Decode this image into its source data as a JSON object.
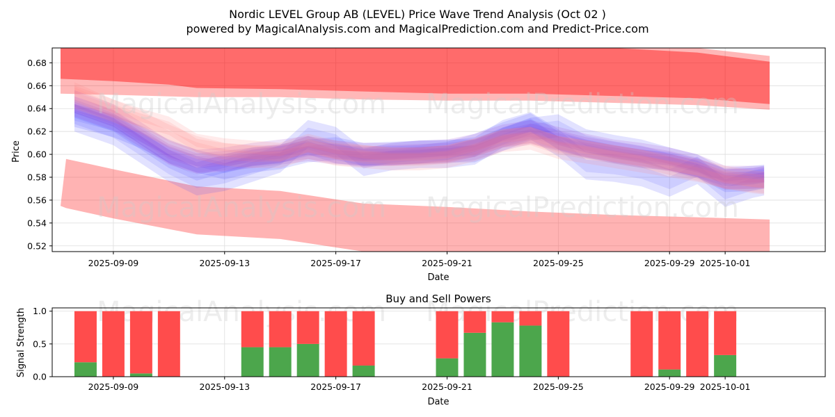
{
  "chart_data": [
    {
      "type": "area",
      "title": "Nordic LEVEL Group AB (LEVEL) Price Wave Trend Analysis (Oct 02 )",
      "subtitle": "powered by MagicalAnalysis.com and MagicalPrediction.com and Predict-Price.com",
      "xlabel": "Date",
      "ylabel": "Price",
      "ylim": [
        0.515,
        0.693
      ],
      "yticks": [
        "0.52",
        "0.54",
        "0.56",
        "0.58",
        "0.60",
        "0.62",
        "0.64",
        "0.66",
        "0.68"
      ],
      "ytick_values": [
        0.52,
        0.54,
        0.56,
        0.58,
        0.6,
        0.62,
        0.64,
        0.66,
        0.68
      ],
      "x_day_range": [
        -2.2,
        25.6
      ],
      "xticks": [
        "2025-09-09",
        "2025-09-13",
        "2025-09-17",
        "2025-09-21",
        "2025-09-25",
        "2025-09-29",
        "2025-10-01"
      ],
      "xtick_days": [
        0,
        4,
        8,
        12,
        16,
        20,
        22
      ],
      "watermarks": [
        "MagicalAnalysis.com",
        "MagicalPrediction.com",
        "MagicalAnalysis.com",
        "MagicalPrediction.com"
      ],
      "colors": {
        "upper": "#ff0000",
        "lower": "#ff4040",
        "blue": "#4d4dff",
        "purple": "#9a3fd0",
        "pink": "#ff8080"
      },
      "upper_band": {
        "days": [
          -1.9,
          0,
          2,
          3,
          6,
          9,
          12,
          15,
          18,
          21,
          23.6
        ],
        "top": [
          0.693,
          0.693,
          0.693,
          0.693,
          0.693,
          0.693,
          0.693,
          0.693,
          0.693,
          0.689,
          0.681
        ],
        "bottom": [
          0.666,
          0.664,
          0.661,
          0.658,
          0.657,
          0.655,
          0.653,
          0.653,
          0.651,
          0.649,
          0.644
        ]
      },
      "upper_band_outer": {
        "days": [
          -1.9,
          0,
          3,
          6,
          9,
          12,
          15,
          18,
          21,
          23.6
        ],
        "top": [
          0.693,
          0.693,
          0.693,
          0.693,
          0.693,
          0.693,
          0.693,
          0.693,
          0.693,
          0.686
        ],
        "bottom": [
          0.653,
          0.652,
          0.65,
          0.65,
          0.648,
          0.647,
          0.647,
          0.645,
          0.643,
          0.639
        ]
      },
      "lower_band": {
        "days": [
          -1.9,
          -1.7,
          0,
          3,
          6,
          9,
          12,
          15,
          18,
          21,
          23.6
        ],
        "top": [
          0.555,
          0.596,
          0.587,
          0.572,
          0.568,
          0.557,
          0.554,
          0.55,
          0.547,
          0.545,
          0.543
        ],
        "bottom": [
          0.555,
          0.553,
          0.544,
          0.53,
          0.526,
          0.515,
          0.515,
          0.515,
          0.515,
          0.515,
          0.515
        ]
      },
      "wave_series": [
        {
          "name": "blue-1",
          "color": "blue",
          "days": [
            -1.4,
            0,
            1,
            2,
            3,
            4,
            5,
            6,
            7,
            8,
            9,
            10,
            11,
            12,
            13,
            14,
            15,
            16,
            17,
            18,
            19,
            20,
            21,
            22,
            23,
            23.4
          ],
          "mid": [
            0.634,
            0.625,
            0.615,
            0.603,
            0.594,
            0.588,
            0.594,
            0.597,
            0.603,
            0.605,
            0.6,
            0.601,
            0.602,
            0.603,
            0.603,
            0.613,
            0.622,
            0.625,
            0.612,
            0.607,
            0.603,
            0.596,
            0.59,
            0.577,
            0.578,
            0.58
          ],
          "width": 0.01
        },
        {
          "name": "blue-2",
          "color": "blue",
          "days": [
            -1.4,
            0,
            1,
            2,
            3,
            4,
            5,
            6,
            7,
            8,
            9,
            10,
            11,
            12,
            13,
            14,
            15,
            16,
            17,
            18,
            19,
            20,
            21,
            22,
            23,
            23.4
          ],
          "mid": [
            0.632,
            0.62,
            0.604,
            0.588,
            0.576,
            0.58,
            0.588,
            0.596,
            0.618,
            0.612,
            0.593,
            0.598,
            0.6,
            0.6,
            0.603,
            0.618,
            0.625,
            0.61,
            0.59,
            0.588,
            0.584,
            0.575,
            0.586,
            0.566,
            0.574,
            0.576
          ],
          "width": 0.012
        },
        {
          "name": "blue-3",
          "color": "blue",
          "days": [
            -1.4,
            0,
            1,
            2,
            3,
            4,
            5,
            6,
            7,
            8,
            9,
            10,
            11,
            12,
            13,
            14,
            15,
            16,
            17,
            18,
            19,
            20,
            21,
            22,
            23,
            23.4
          ],
          "mid": [
            0.64,
            0.628,
            0.612,
            0.596,
            0.585,
            0.592,
            0.598,
            0.6,
            0.608,
            0.6,
            0.598,
            0.599,
            0.6,
            0.603,
            0.61,
            0.62,
            0.628,
            0.612,
            0.605,
            0.6,
            0.596,
            0.594,
            0.588,
            0.58,
            0.582,
            0.583
          ],
          "width": 0.008
        },
        {
          "name": "purple-1",
          "color": "purple",
          "days": [
            -1.4,
            0,
            1,
            2,
            3,
            4,
            5,
            6,
            7,
            8,
            9,
            10,
            11,
            12,
            13,
            14,
            15,
            16,
            17,
            18,
            19,
            20,
            21,
            22,
            23,
            23.4
          ],
          "mid": [
            0.642,
            0.63,
            0.615,
            0.6,
            0.592,
            0.594,
            0.597,
            0.6,
            0.603,
            0.6,
            0.598,
            0.599,
            0.6,
            0.601,
            0.604,
            0.612,
            0.618,
            0.612,
            0.606,
            0.602,
            0.598,
            0.594,
            0.588,
            0.578,
            0.579,
            0.58
          ],
          "width": 0.009
        },
        {
          "name": "purple-2",
          "color": "purple",
          "days": [
            -1.4,
            0,
            1,
            2,
            3,
            4,
            5,
            6,
            7,
            8,
            9,
            10,
            11,
            12,
            13,
            14,
            15,
            16,
            17,
            18,
            19,
            20,
            21,
            22,
            23,
            23.4
          ],
          "mid": [
            0.646,
            0.634,
            0.618,
            0.602,
            0.594,
            0.596,
            0.6,
            0.603,
            0.606,
            0.602,
            0.6,
            0.6,
            0.602,
            0.603,
            0.608,
            0.616,
            0.62,
            0.614,
            0.608,
            0.603,
            0.6,
            0.596,
            0.59,
            0.58,
            0.58,
            0.58
          ],
          "width": 0.01
        },
        {
          "name": "pink-1",
          "color": "pink",
          "days": [
            -1.4,
            0,
            1,
            2,
            3,
            4,
            5,
            6,
            7,
            8,
            9,
            10,
            11,
            12,
            13,
            14,
            15,
            16,
            17,
            18,
            19,
            20,
            21,
            22,
            23,
            23.4
          ],
          "mid": [
            0.655,
            0.64,
            0.632,
            0.625,
            0.61,
            0.606,
            0.604,
            0.602,
            0.61,
            0.604,
            0.6,
            0.598,
            0.598,
            0.6,
            0.606,
            0.614,
            0.616,
            0.608,
            0.604,
            0.6,
            0.596,
            0.59,
            0.585,
            0.578,
            0.575,
            0.574
          ],
          "width": 0.008
        },
        {
          "name": "pink-2",
          "color": "pink",
          "days": [
            -1.4,
            0,
            1,
            2,
            3,
            4,
            5,
            6,
            7,
            8,
            9,
            10,
            11,
            12,
            13,
            14,
            15,
            16,
            17,
            18,
            19,
            20,
            21,
            22,
            23,
            23.4
          ],
          "mid": [
            0.65,
            0.638,
            0.628,
            0.616,
            0.606,
            0.6,
            0.598,
            0.598,
            0.606,
            0.6,
            0.598,
            0.596,
            0.596,
            0.598,
            0.604,
            0.612,
            0.614,
            0.606,
            0.602,
            0.598,
            0.594,
            0.59,
            0.586,
            0.58,
            0.576,
            0.575
          ],
          "width": 0.01
        }
      ]
    },
    {
      "type": "bar",
      "title": "Buy and Sell Powers",
      "xlabel": "Date",
      "ylabel": "Signal Strength",
      "ylim": [
        0,
        1.05
      ],
      "yticks": [
        "0.0",
        "0.5",
        "1.0"
      ],
      "ytick_values": [
        0,
        0.5,
        1.0
      ],
      "x_day_range": [
        -2.2,
        25.6
      ],
      "xticks": [
        "2025-09-09",
        "2025-09-13",
        "2025-09-17",
        "2025-09-21",
        "2025-09-25",
        "2025-09-29",
        "2025-10-01"
      ],
      "xtick_days": [
        0,
        4,
        8,
        12,
        16,
        20,
        22
      ],
      "bar_days": [
        -1,
        0,
        1,
        2,
        5,
        6,
        7,
        8,
        9,
        12,
        13,
        14,
        15,
        16,
        19,
        20,
        21,
        22
      ],
      "series": [
        {
          "name": "Buy",
          "color": "#4ca64c",
          "values": [
            0.22,
            0.0,
            0.05,
            0.0,
            0.45,
            0.45,
            0.5,
            0.0,
            0.17,
            0.28,
            0.67,
            0.83,
            0.78,
            0.0,
            0.0,
            0.11,
            0.0,
            0.33
          ]
        },
        {
          "name": "Sell",
          "color": "#ff4c4c",
          "values": [
            0.78,
            1.0,
            0.95,
            1.0,
            0.55,
            0.55,
            0.5,
            1.0,
            0.83,
            0.72,
            0.33,
            0.17,
            0.22,
            1.0,
            1.0,
            0.89,
            1.0,
            0.67
          ]
        }
      ]
    }
  ]
}
